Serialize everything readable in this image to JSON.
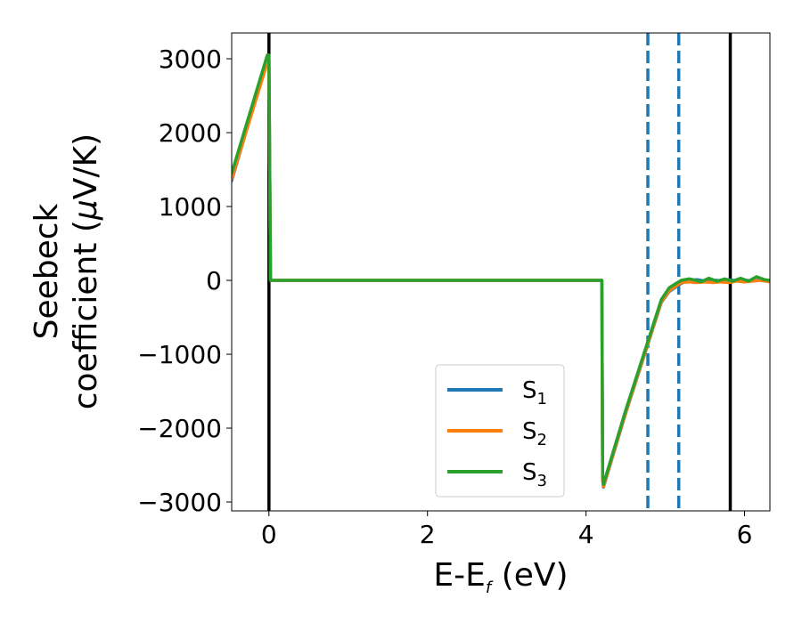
{
  "chart_data": {
    "type": "line",
    "xlabel": "E-E",
    "xlabel_sub": "f",
    "xlabel_unit": " (eV)",
    "ylabel_line1": "Seebeck",
    "ylabel_line2": "coefficient  (",
    "ylabel_mu": "μ",
    "ylabel_unit": "V/K)",
    "xlim": [
      -0.47,
      6.32
    ],
    "ylim": [
      -3120,
      3350
    ],
    "xticks": [
      0,
      2,
      4,
      6
    ],
    "xtick_labels": [
      "0",
      "2",
      "4",
      "6"
    ],
    "yticks": [
      3000,
      2000,
      1000,
      0,
      -1000,
      -2000,
      -3000
    ],
    "ytick_labels": [
      "3000",
      "2000",
      "1000",
      "0",
      "−1000",
      "−2000",
      "−3000"
    ],
    "legend_placement": "lower-center",
    "grid": false,
    "vlines": [
      {
        "x": 0.0,
        "style": "solid",
        "color": "#000000"
      },
      {
        "x": 5.82,
        "style": "solid",
        "color": "#000000"
      },
      {
        "x": 4.78,
        "style": "dashed",
        "color": "#1f77b4"
      },
      {
        "x": 5.17,
        "style": "dashed",
        "color": "#1f77b4"
      }
    ],
    "series": [
      {
        "name": "S",
        "name_sub": "1",
        "color": "#1f77b4",
        "x": [
          -0.47,
          -0.02,
          0.0,
          0.02,
          4.2,
          4.21,
          4.22,
          4.5,
          4.8,
          4.95,
          5.05,
          5.2,
          5.3,
          5.4,
          5.5,
          5.6,
          5.7,
          5.8,
          5.9,
          6.0,
          6.1,
          6.2,
          6.32
        ],
        "values": [
          1350,
          3000,
          3000,
          0,
          0,
          -2700,
          -2800,
          -1800,
          -800,
          -300,
          -150,
          -40,
          0,
          10,
          -10,
          5,
          -5,
          10,
          -5,
          5,
          -10,
          10,
          0
        ]
      },
      {
        "name": "S",
        "name_sub": "2",
        "color": "#ff7f0e",
        "x": [
          -0.47,
          -0.02,
          0.0,
          0.02,
          4.2,
          4.21,
          4.22,
          4.5,
          4.8,
          4.95,
          5.05,
          5.2,
          5.3,
          5.4,
          5.5,
          5.6,
          5.7,
          5.8,
          5.9,
          6.0,
          6.1,
          6.2,
          6.32
        ],
        "values": [
          1370,
          2950,
          2950,
          0,
          0,
          -2700,
          -2790,
          -1790,
          -790,
          -290,
          -140,
          -30,
          -20,
          -30,
          -20,
          -30,
          -20,
          -30,
          -10,
          -20,
          -10,
          0,
          -20
        ]
      },
      {
        "name": "S",
        "name_sub": "3",
        "color": "#2ca02c",
        "x": [
          -0.47,
          -0.02,
          0.0,
          0.02,
          4.2,
          4.21,
          4.22,
          4.5,
          4.8,
          4.95,
          5.05,
          5.2,
          5.3,
          5.35,
          5.45,
          5.55,
          5.65,
          5.75,
          5.85,
          5.95,
          6.05,
          6.15,
          6.25,
          6.32
        ],
        "values": [
          1450,
          3050,
          3050,
          0,
          0,
          -2650,
          -2760,
          -1760,
          -760,
          -260,
          -100,
          0,
          20,
          10,
          -20,
          30,
          -10,
          20,
          -10,
          30,
          -10,
          50,
          10,
          0
        ]
      }
    ]
  }
}
